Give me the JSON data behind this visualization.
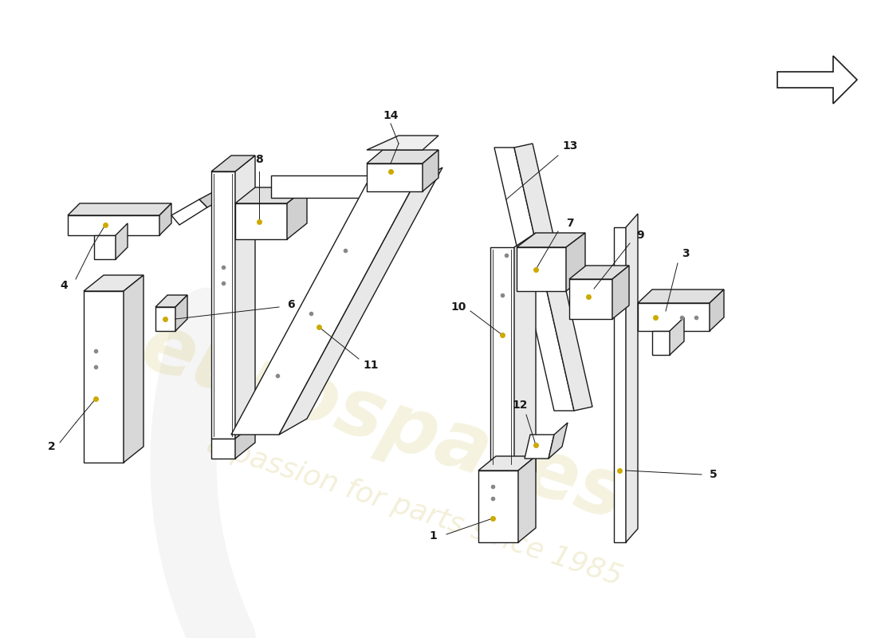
{
  "background_color": "#ffffff",
  "watermark_color1": "#d4c870",
  "watermark_color2": "#c8b850",
  "line_color": "#1a1a1a",
  "line_width": 1.0,
  "label_fontsize": 10,
  "dot_color": "#ccaa00",
  "dot_color2": "#888888"
}
